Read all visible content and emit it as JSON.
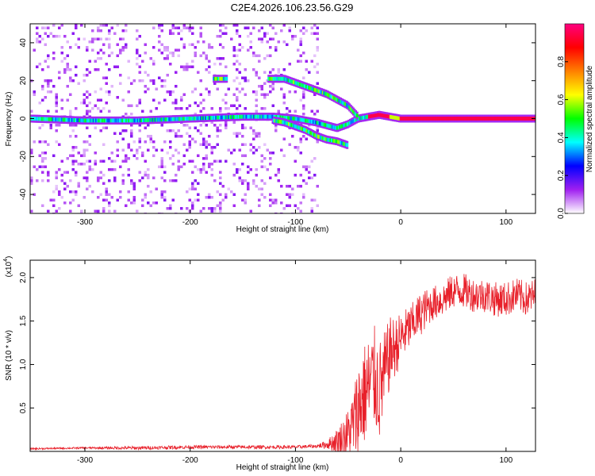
{
  "title": "C2E4.2026.106.23.56.G29",
  "chart_data": [
    {
      "type": "heatmap",
      "title": "C2E4.2026.106.23.56.G29",
      "xlabel": "Height of straight line (km)",
      "ylabel": "Frequency (Hz)",
      "xlim": [
        -352,
        128
      ],
      "ylim": [
        -50,
        50
      ],
      "xticks": [
        -300,
        -200,
        -100,
        0,
        100
      ],
      "yticks": [
        -40,
        -20,
        0,
        20,
        40
      ],
      "colorbar": {
        "label": "Normalized spectral amplitude",
        "range": [
          0,
          1
        ],
        "ticks": [
          "0.0",
          "0.2",
          "0.4",
          "0.6",
          "0.8"
        ],
        "colors": [
          "#ffffff",
          "#a020f0",
          "#0000ff",
          "#00ffff",
          "#00ff00",
          "#ffff00",
          "#ff8000",
          "#ff0000",
          "#ff0080"
        ]
      },
      "ridges": [
        {
          "name": "",
          "x": [
            -350,
            -300,
            -250,
            -200,
            -150,
            -120,
            -100,
            -80,
            -60,
            -50,
            -40,
            -30,
            -20,
            -10,
            0,
            50,
            100,
            128
          ],
          "y": [
            0,
            -1,
            -1,
            0,
            1,
            1,
            0,
            -2,
            -5,
            -3,
            0,
            1,
            2,
            1,
            0,
            0,
            0,
            0
          ]
        },
        {
          "name": "",
          "x": [
            -120,
            -110,
            -100,
            -90,
            -80,
            -70,
            -60,
            -50
          ],
          "y": [
            -1,
            -2,
            -4,
            -6,
            -9,
            -11,
            -12,
            -14
          ]
        },
        {
          "name": "",
          "x": [
            -125,
            -110,
            -100,
            -90,
            -80,
            -70,
            -60,
            -50,
            -45,
            -40
          ],
          "y": [
            21,
            21,
            19,
            17,
            15,
            13,
            10,
            7,
            4,
            1
          ]
        },
        {
          "name": "",
          "x": [
            -177,
            -165
          ],
          "y": [
            21,
            21
          ]
        }
      ]
    },
    {
      "type": "line",
      "xlabel": "Height of straight line (km)",
      "ylabel": "SNR (10 * v/v)",
      "y_scale_label": "(x10",
      "y_scale_exp": "4",
      "y_scale_tail": ")",
      "xlim": [
        -352,
        128
      ],
      "ylim": [
        0,
        2.2
      ],
      "xticks": [
        -300,
        -200,
        -100,
        0,
        100
      ],
      "yticks": [
        "0.5",
        "1.0",
        "1.5",
        "2.0"
      ],
      "color": "#e8202a",
      "x": [
        -352,
        -300,
        -250,
        -200,
        -150,
        -100,
        -80,
        -70,
        -60,
        -50,
        -45,
        -40,
        -35,
        -30,
        -25,
        -20,
        -15,
        -10,
        -5,
        0,
        10,
        20,
        30,
        40,
        50,
        60,
        70,
        80,
        90,
        100,
        110,
        120,
        128
      ],
      "y": [
        0.03,
        0.04,
        0.04,
        0.05,
        0.05,
        0.05,
        0.06,
        0.08,
        0.12,
        0.2,
        0.32,
        0.5,
        0.65,
        0.75,
        0.85,
        0.7,
        0.9,
        1.15,
        1.2,
        1.3,
        1.45,
        1.6,
        1.7,
        1.75,
        1.85,
        1.85,
        1.8,
        1.8,
        1.75,
        1.75,
        1.8,
        1.75,
        1.8
      ],
      "noise": [
        0.01,
        0.01,
        0.02,
        0.02,
        0.02,
        0.02,
        0.02,
        0.05,
        0.15,
        0.3,
        0.4,
        0.6,
        0.6,
        0.6,
        0.6,
        0.6,
        0.5,
        0.4,
        0.35,
        0.3,
        0.25,
        0.25,
        0.2,
        0.2,
        0.2,
        0.2,
        0.2,
        0.2,
        0.2,
        0.2,
        0.2,
        0.2,
        0.2
      ]
    }
  ]
}
